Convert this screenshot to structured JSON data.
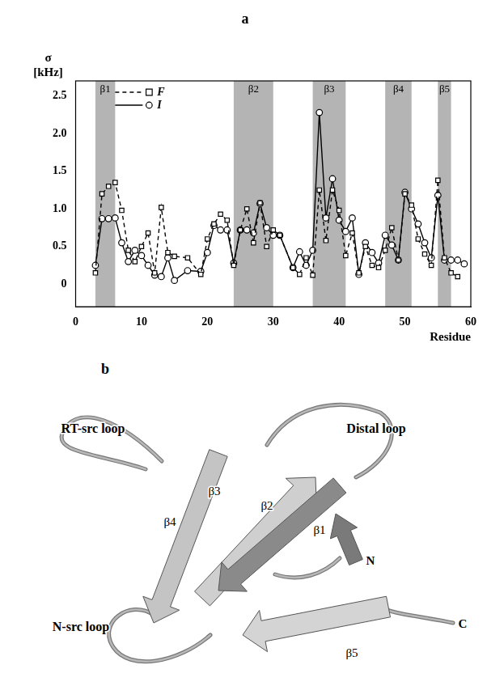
{
  "chart_data": {
    "type": "line",
    "title": "a",
    "x": [
      3,
      4,
      5,
      6,
      7,
      8,
      9,
      10,
      11,
      12,
      13,
      14,
      15,
      17,
      19,
      20,
      21,
      22,
      23,
      24,
      25,
      26,
      27,
      28,
      29,
      30,
      31,
      33,
      34,
      35,
      36,
      37,
      38,
      39,
      40,
      41,
      42,
      43,
      44,
      45,
      46,
      47,
      48,
      49,
      50,
      51,
      52,
      53,
      54,
      55,
      56,
      57,
      58,
      59
    ],
    "series": [
      {
        "name": "F",
        "color": "#000000",
        "marker": "square",
        "line_style": "dashed",
        "values": [
          0.15,
          1.2,
          1.3,
          1.35,
          0.98,
          0.45,
          0.3,
          0.5,
          0.68,
          0.15,
          1.02,
          0.42,
          0.37,
          0.35,
          0.13,
          0.6,
          0.8,
          0.93,
          0.85,
          0.25,
          0.72,
          1.0,
          0.55,
          1.08,
          0.5,
          0.72,
          0.65,
          0.22,
          0.13,
          0.35,
          0.12,
          1.25,
          0.58,
          1.25,
          0.98,
          0.38,
          0.68,
          0.15,
          0.5,
          0.25,
          0.22,
          0.45,
          0.75,
          0.32,
          1.2,
          1.05,
          0.6,
          0.4,
          0.25,
          1.38,
          0.35,
          0.15,
          0.1,
          null
        ]
      },
      {
        "name": "I",
        "color": "#000000",
        "marker": "circle",
        "line_style": "solid",
        "values": [
          0.25,
          0.87,
          0.87,
          0.88,
          0.55,
          0.3,
          0.45,
          0.38,
          0.25,
          0.12,
          0.1,
          0.35,
          0.05,
          0.18,
          0.17,
          0.42,
          0.78,
          0.72,
          0.72,
          0.28,
          0.72,
          0.72,
          0.68,
          1.07,
          0.75,
          0.65,
          0.65,
          0.22,
          0.43,
          0.25,
          0.45,
          2.28,
          0.88,
          1.4,
          0.85,
          0.7,
          0.88,
          0.13,
          0.55,
          0.42,
          0.28,
          0.65,
          0.52,
          0.32,
          1.22,
          1.0,
          0.8,
          0.55,
          0.35,
          1.18,
          0.32,
          0.32,
          0.32,
          0.27
        ]
      }
    ],
    "x_label": "Residue",
    "y_label": [
      "σ",
      "[kHz]"
    ],
    "xlim": [
      0,
      60
    ],
    "xticks": [
      0,
      10,
      20,
      30,
      40,
      50,
      60
    ],
    "ylim": [
      -0.3,
      2.7
    ],
    "yticks": [
      0,
      0.5,
      {
        "value": 1,
        "label": "1.0"
      },
      1.5,
      {
        "value": 2,
        "label": "2.0"
      },
      2.5
    ],
    "grid": false,
    "legend": "top left",
    "annotations": [
      {
        "text": "β1",
        "x": [
          3,
          6
        ]
      },
      {
        "text": "β2",
        "x": [
          24,
          30
        ]
      },
      {
        "text": "β3",
        "x": [
          36,
          41
        ]
      },
      {
        "text": "β4",
        "x": [
          47,
          51
        ]
      },
      {
        "text": "β5",
        "x": [
          55,
          57
        ]
      }
    ]
  },
  "structure": {
    "title": "b",
    "loops": [
      "RT-src loop",
      "Distal loop",
      "N-src loop"
    ],
    "strands": [
      "β1",
      "β2",
      "β3",
      "β4",
      "β5"
    ],
    "termini": [
      "N",
      "C"
    ]
  }
}
